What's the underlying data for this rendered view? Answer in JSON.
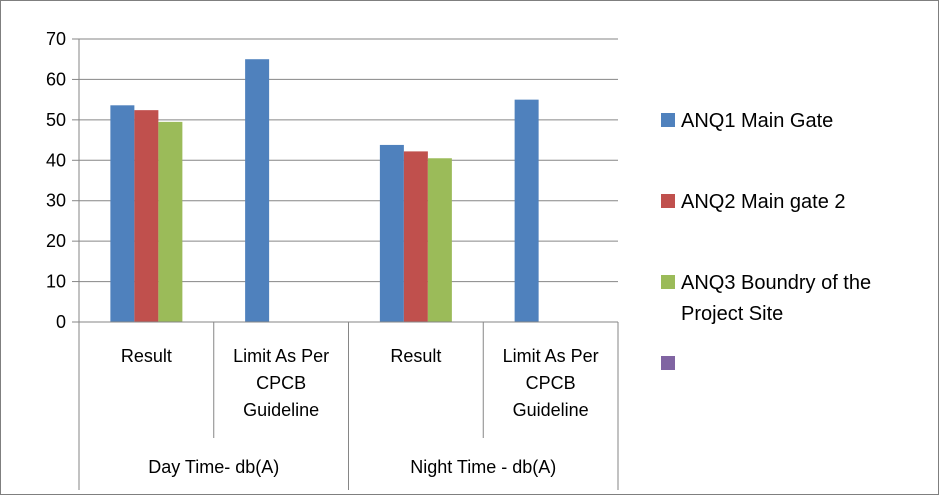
{
  "chart_data": {
    "type": "bar",
    "title": "",
    "xlabel": "",
    "ylabel": "",
    "ylim": [
      0,
      70
    ],
    "yticks": [
      0,
      10,
      20,
      30,
      40,
      50,
      60,
      70
    ],
    "grid": true,
    "legend_position": "right",
    "groups": [
      "Day Time- db(A)",
      "Night Time - db(A)"
    ],
    "categories": [
      {
        "group": "Day Time- db(A)",
        "lines": [
          "Result"
        ]
      },
      {
        "group": "Day Time- db(A)",
        "lines": [
          "Limit As Per",
          "CPCB",
          "Guideline"
        ]
      },
      {
        "group": "Night Time - db(A)",
        "lines": [
          "Result"
        ]
      },
      {
        "group": "Night Time - db(A)",
        "lines": [
          "Limit As Per",
          "CPCB",
          "Guideline"
        ]
      }
    ],
    "series": [
      {
        "name": "ANQ1  Main Gate",
        "color": "#4f81bd",
        "values": [
          53.6,
          65,
          43.8,
          55
        ]
      },
      {
        "name": "ANQ2 Main gate 2",
        "color": "#c0504d",
        "values": [
          52.4,
          null,
          42.2,
          null
        ]
      },
      {
        "name": "ANQ3  Boundry  of the Project Site",
        "legend_lines": [
          "ANQ3  Boundry  of the",
          "Project Site"
        ],
        "color": "#9bbb59",
        "values": [
          49.5,
          null,
          40.5,
          null
        ]
      },
      {
        "name": "",
        "legend_lines": [],
        "color": "#8064a2",
        "values": [
          null,
          null,
          null,
          null
        ]
      }
    ]
  }
}
